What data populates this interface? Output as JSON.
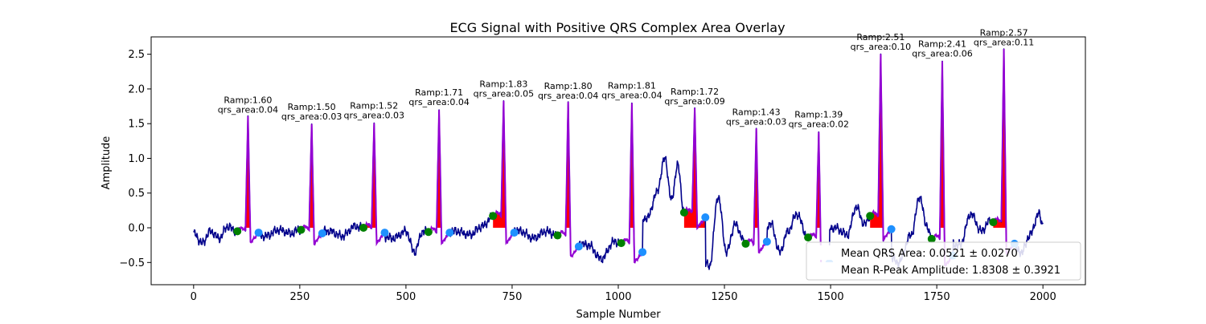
{
  "chart_data": {
    "type": "line",
    "title": "ECG Signal with Positive QRS Complex Area Overlay",
    "xlabel": "Sample Number",
    "ylabel": "Amplitude",
    "xlim": [
      -100,
      2100
    ],
    "ylim": [
      -0.82,
      2.75
    ],
    "xticks": [
      0,
      250,
      500,
      750,
      1000,
      1250,
      1500,
      1750,
      2000
    ],
    "yticks": [
      -0.5,
      0.0,
      0.5,
      1.0,
      1.5,
      2.0,
      2.5
    ],
    "ytick_labels": [
      "−0.5",
      "0.0",
      "0.5",
      "1.0",
      "1.5",
      "2.0",
      "2.5"
    ],
    "grid": false,
    "legend_position": "lower-right",
    "colors": {
      "signal": "#00008b",
      "qrs_segment": "#9400d3",
      "qrs_area": "#ff0000",
      "q_marker": "#008000",
      "s_marker": "#1e90ff"
    },
    "beats": [
      {
        "r_x": 128,
        "r_amp": 1.6,
        "q_x": 103,
        "q_y": -0.05,
        "s_x": 153,
        "s_y": -0.07,
        "ramp_label": "Ramp:1.60",
        "area_label": "qrs_area:0.04"
      },
      {
        "r_x": 278,
        "r_amp": 1.5,
        "q_x": 253,
        "q_y": -0.03,
        "s_x": 303,
        "s_y": -0.08,
        "ramp_label": "Ramp:1.50",
        "area_label": "qrs_area:0.03"
      },
      {
        "r_x": 425,
        "r_amp": 1.52,
        "q_x": 400,
        "q_y": 0.0,
        "s_x": 450,
        "s_y": -0.07,
        "ramp_label": "Ramp:1.52",
        "area_label": "qrs_area:0.03"
      },
      {
        "r_x": 578,
        "r_amp": 1.71,
        "q_x": 553,
        "q_y": -0.06,
        "s_x": 603,
        "s_y": -0.07,
        "ramp_label": "Ramp:1.71",
        "area_label": "qrs_area:0.04"
      },
      {
        "r_x": 730,
        "r_amp": 1.83,
        "q_x": 705,
        "q_y": 0.17,
        "s_x": 755,
        "s_y": -0.07,
        "ramp_label": "Ramp:1.83",
        "area_label": "qrs_area:0.05"
      },
      {
        "r_x": 882,
        "r_amp": 1.8,
        "q_x": 857,
        "q_y": -0.11,
        "s_x": 907,
        "s_y": -0.27,
        "ramp_label": "Ramp:1.80",
        "area_label": "qrs_area:0.04"
      },
      {
        "r_x": 1032,
        "r_amp": 1.81,
        "q_x": 1007,
        "q_y": -0.22,
        "s_x": 1057,
        "s_y": -0.35,
        "ramp_label": "Ramp:1.81",
        "area_label": "qrs_area:0.04"
      },
      {
        "r_x": 1180,
        "r_amp": 1.72,
        "q_x": 1155,
        "q_y": 0.22,
        "s_x": 1205,
        "s_y": 0.15,
        "ramp_label": "Ramp:1.72",
        "area_label": "qrs_area:0.09"
      },
      {
        "r_x": 1325,
        "r_amp": 1.43,
        "q_x": 1300,
        "q_y": -0.23,
        "s_x": 1350,
        "s_y": -0.2,
        "ramp_label": "Ramp:1.43",
        "area_label": "qrs_area:0.03"
      },
      {
        "r_x": 1472,
        "r_amp": 1.39,
        "q_x": 1447,
        "q_y": -0.14,
        "s_x": 1497,
        "s_y": -0.51,
        "ramp_label": "Ramp:1.39",
        "area_label": "qrs_area:0.02"
      },
      {
        "r_x": 1618,
        "r_amp": 2.51,
        "q_x": 1593,
        "q_y": 0.17,
        "s_x": 1643,
        "s_y": -0.02,
        "ramp_label": "Ramp:2.51",
        "area_label": "qrs_area:0.10"
      },
      {
        "r_x": 1763,
        "r_amp": 2.41,
        "q_x": 1738,
        "q_y": -0.16,
        "s_x": 1788,
        "s_y": -0.4,
        "ramp_label": "Ramp:2.41",
        "area_label": "qrs_area:0.06"
      },
      {
        "r_x": 1908,
        "r_amp": 2.57,
        "q_x": 1883,
        "q_y": 0.08,
        "s_x": 1933,
        "s_y": -0.23,
        "ramp_label": "Ramp:2.57",
        "area_label": "qrs_area:0.11"
      }
    ],
    "baseline_anchors": [
      [
        0,
        -0.08
      ],
      [
        20,
        -0.22
      ],
      [
        40,
        -0.05
      ],
      [
        60,
        -0.15
      ],
      [
        80,
        0.02
      ],
      [
        100,
        -0.05
      ],
      [
        170,
        -0.12
      ],
      [
        200,
        -0.03
      ],
      [
        230,
        -0.08
      ],
      [
        250,
        -0.02
      ],
      [
        320,
        -0.05
      ],
      [
        350,
        -0.12
      ],
      [
        380,
        0.02
      ],
      [
        400,
        0.0
      ],
      [
        470,
        -0.15
      ],
      [
        500,
        -0.05
      ],
      [
        520,
        -0.35
      ],
      [
        540,
        -0.05
      ],
      [
        553,
        -0.06
      ],
      [
        620,
        -0.05
      ],
      [
        650,
        -0.1
      ],
      [
        680,
        0.02
      ],
      [
        705,
        0.17
      ],
      [
        770,
        -0.05
      ],
      [
        800,
        -0.15
      ],
      [
        830,
        -0.05
      ],
      [
        857,
        -0.11
      ],
      [
        930,
        -0.25
      ],
      [
        960,
        -0.45
      ],
      [
        990,
        -0.2
      ],
      [
        1007,
        -0.22
      ],
      [
        1070,
        0.15
      ],
      [
        1090,
        0.5
      ],
      [
        1110,
        1.0
      ],
      [
        1125,
        0.4
      ],
      [
        1140,
        0.9
      ],
      [
        1155,
        0.22
      ],
      [
        1215,
        -0.55
      ],
      [
        1235,
        0.45
      ],
      [
        1255,
        -0.35
      ],
      [
        1275,
        0.05
      ],
      [
        1300,
        -0.23
      ],
      [
        1360,
        0.05
      ],
      [
        1380,
        -0.35
      ],
      [
        1400,
        -0.05
      ],
      [
        1420,
        0.2
      ],
      [
        1447,
        -0.14
      ],
      [
        1510,
        0.0
      ],
      [
        1540,
        -0.1
      ],
      [
        1560,
        0.3
      ],
      [
        1580,
        0.05
      ],
      [
        1593,
        0.17
      ],
      [
        1660,
        -0.5
      ],
      [
        1690,
        -0.1
      ],
      [
        1710,
        0.45
      ],
      [
        1725,
        0.05
      ],
      [
        1738,
        -0.16
      ],
      [
        1805,
        -0.25
      ],
      [
        1830,
        0.2
      ],
      [
        1855,
        -0.05
      ],
      [
        1875,
        0.1
      ],
      [
        1883,
        0.08
      ],
      [
        1950,
        -0.35
      ],
      [
        1970,
        -0.1
      ],
      [
        1990,
        0.2
      ],
      [
        2000,
        0.05
      ]
    ],
    "legend": {
      "mean_qrs_area": "Mean QRS Area: 0.0521 ± 0.0270",
      "mean_r_amp": "Mean R-Peak Amplitude: 1.8308 ± 0.3921"
    }
  }
}
